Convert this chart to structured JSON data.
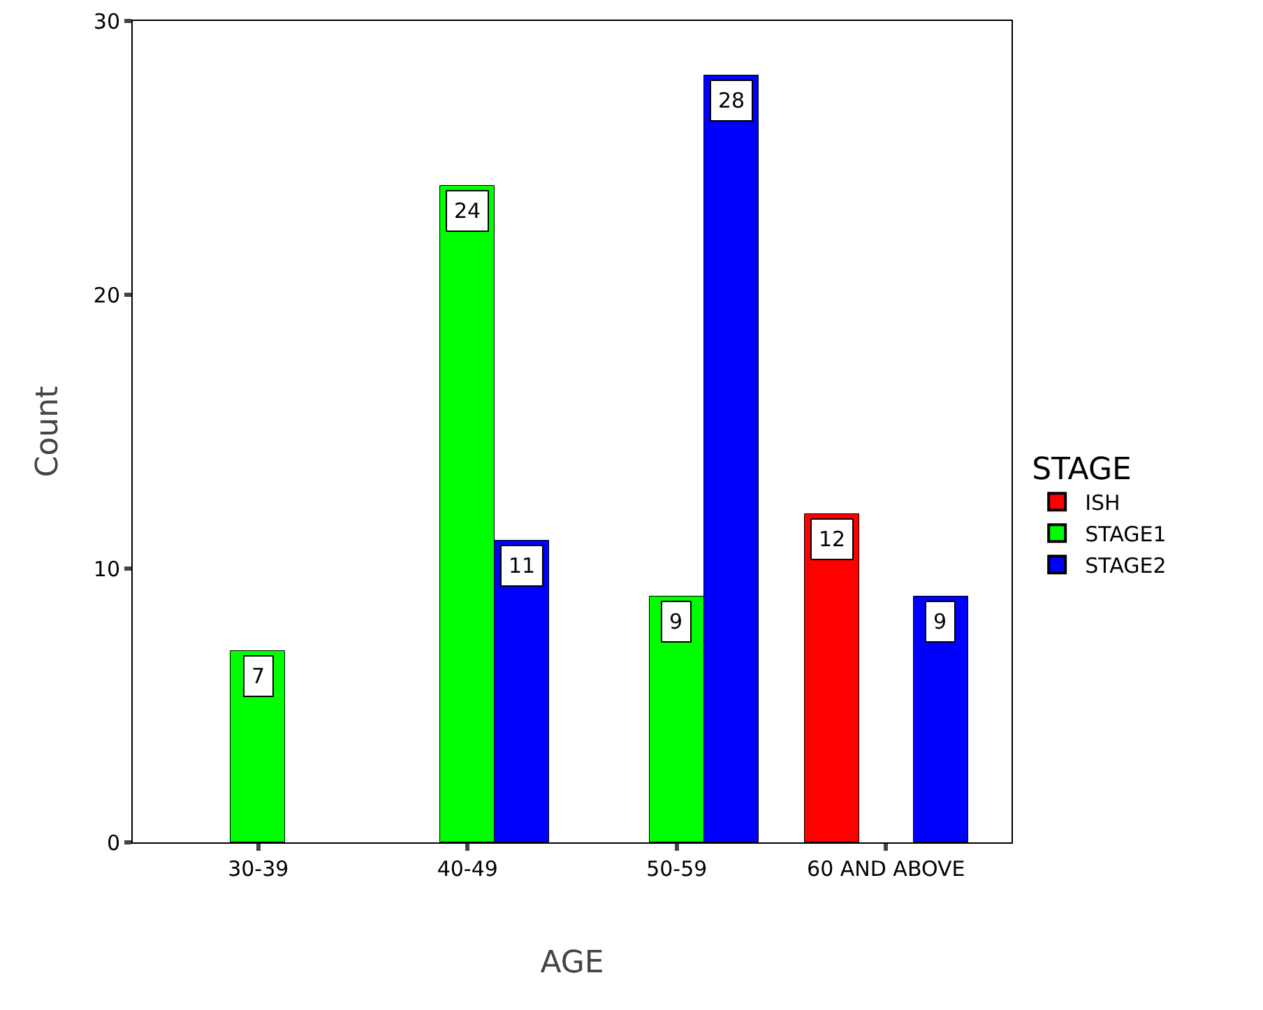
{
  "chart_data": {
    "type": "bar",
    "categories": [
      "30-39",
      "40-49",
      "50-59",
      "60 AND ABOVE"
    ],
    "series": [
      {
        "name": "ISH",
        "color": "#ff0000",
        "values": [
          null,
          null,
          null,
          12
        ]
      },
      {
        "name": "STAGE1",
        "color": "#00ff00",
        "values": [
          7,
          24,
          9,
          null
        ]
      },
      {
        "name": "STAGE2",
        "color": "#0000ff",
        "values": [
          null,
          11,
          28,
          9
        ]
      }
    ],
    "xlabel": "AGE",
    "ylabel": "Count",
    "legend_title": "STAGE",
    "legend": "right",
    "ylim": [
      0,
      30
    ],
    "yticks": [
      0,
      10,
      20,
      30
    ],
    "grid": false,
    "data_labels": true
  }
}
